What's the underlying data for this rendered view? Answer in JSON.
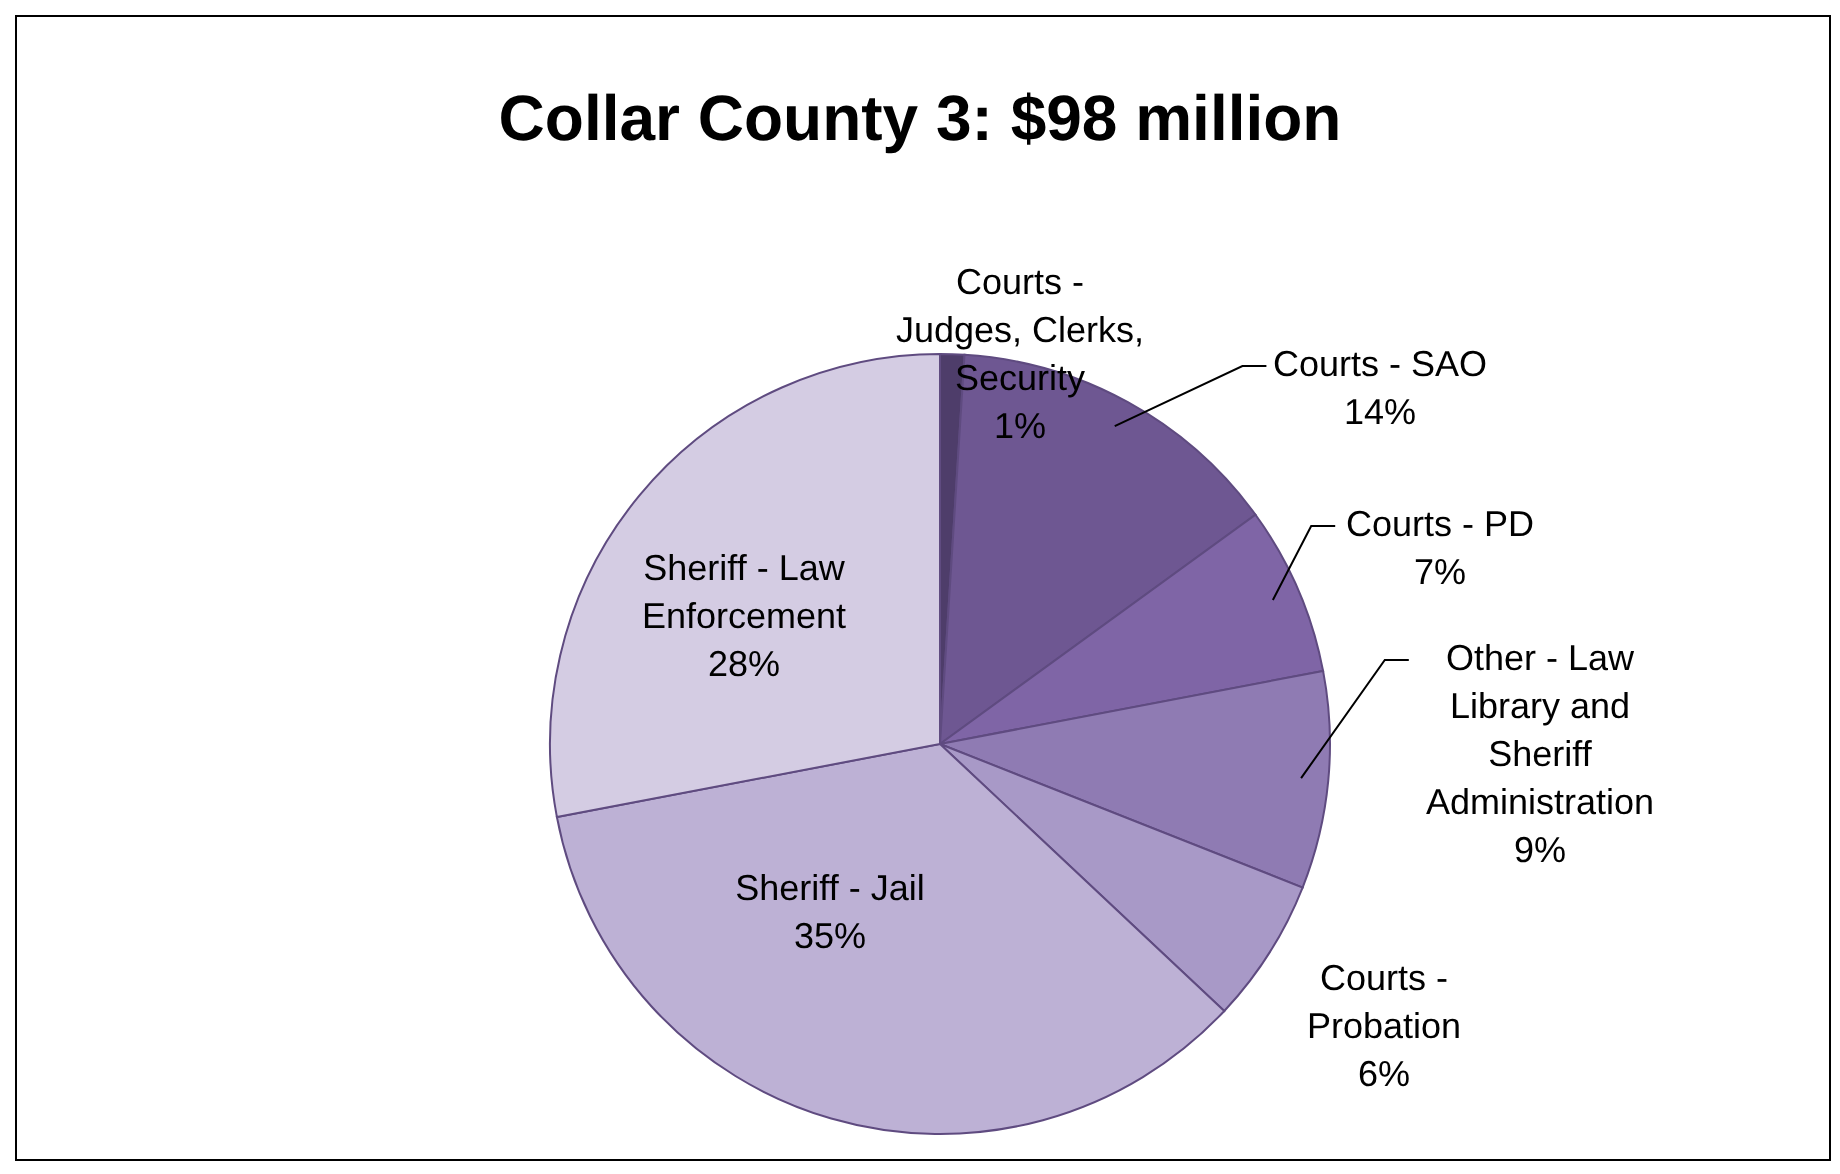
{
  "chart_data": {
    "type": "pie",
    "title": "Collar County 3: $98 million",
    "categories": [
      "Courts - Judges, Clerks, Security",
      "Courts - SAO",
      "Courts - PD",
      "Other - Law Library and Sheriff Administration",
      "Courts - Probation",
      "Sheriff - Jail",
      "Sheriff - Law Enforcement"
    ],
    "values": [
      1,
      14,
      7,
      9,
      6,
      35,
      28
    ],
    "value_labels": [
      "1%",
      "14%",
      "7%",
      "9%",
      "6%",
      "35%",
      "28%"
    ],
    "colors": [
      "#4e3d6a",
      "#6e5792",
      "#7f65a6",
      "#8f7bb3",
      "#a899c7",
      "#bdb1d5",
      "#d4cce3"
    ]
  }
}
